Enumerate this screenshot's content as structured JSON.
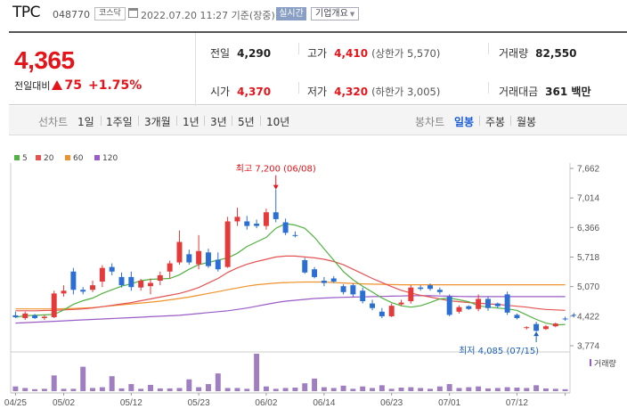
{
  "header": {
    "stock_name": "TPC",
    "stock_code": "048770",
    "market_badge": "코스닥",
    "timestamp": "2022.07.20 11:27 기준(장중)",
    "realtime_label": "실시간",
    "company_info_label": "기업개요",
    "company_info_caret": "▼"
  },
  "price": {
    "current": "4,365",
    "change_label": "전일대비",
    "change_value": "75",
    "change_pct": "+1.75%",
    "prev_close_label": "전일",
    "prev_close": "4,290",
    "high_label": "고가",
    "high": "4,410",
    "upper_limit": "(상한가 5,570)",
    "volume_label": "거래량",
    "volume": "82,550",
    "open_label": "시가",
    "open": "4,370",
    "low_label": "저가",
    "low": "4,320",
    "lower_limit": "(하한가 3,005)",
    "trade_value_label": "거래대금",
    "trade_value": "361 백만",
    "up_color": "#e4141a"
  },
  "period_bar": {
    "line_chart_label": "선차트",
    "line_periods": [
      "1일",
      "1주일",
      "3개월",
      "1년",
      "3년",
      "5년",
      "10년"
    ],
    "candle_chart_label": "봉차트",
    "candle_periods": [
      "일봉",
      "주봉",
      "월봉"
    ],
    "selected": "일봉",
    "selected_color": "#1a5dd8"
  },
  "chart": {
    "legend": [
      {
        "label": "5",
        "color": "#52b140"
      },
      {
        "label": "20",
        "color": "#e45353"
      },
      {
        "label": "60",
        "color": "#f0922b"
      },
      {
        "label": "120",
        "color": "#9a5cc7"
      }
    ],
    "volume_label": "거래량",
    "high_annotation": "최고 7,200 (06/08)",
    "low_annotation": "최저 4,085 (07/15)"
  },
  "chart_data": {
    "type": "candlestick",
    "y_ticks": [
      "7,662",
      "7,014",
      "6,366",
      "5,718",
      "5,070",
      "4,422",
      "3,774"
    ],
    "ylim": [
      3774,
      7662
    ],
    "x_ticks": [
      {
        "label": "04/25",
        "index": 0
      },
      {
        "label": "05/02",
        "index": 5
      },
      {
        "label": "05/12",
        "index": 12
      },
      {
        "label": "05/23",
        "index": 19
      },
      {
        "label": "06/02",
        "index": 26
      },
      {
        "label": "06/14",
        "index": 32
      },
      {
        "label": "06/23",
        "index": 39
      },
      {
        "label": "07/01",
        "index": 45
      },
      {
        "label": "07/12",
        "index": 52
      },
      {
        "label": "",
        "index": 57
      }
    ],
    "up_color": "#e43a3a",
    "down_color": "#2b6fd4",
    "candles": [
      {
        "o": 4440,
        "h": 4520,
        "l": 4380,
        "c": 4400
      },
      {
        "o": 4380,
        "h": 4520,
        "l": 4340,
        "c": 4480
      },
      {
        "o": 4440,
        "h": 4470,
        "l": 4360,
        "c": 4380
      },
      {
        "o": 4380,
        "h": 4450,
        "l": 4340,
        "c": 4410
      },
      {
        "o": 4400,
        "h": 4980,
        "l": 4380,
        "c": 4920
      },
      {
        "o": 4920,
        "h": 5100,
        "l": 4850,
        "c": 4980
      },
      {
        "o": 5400,
        "h": 5480,
        "l": 4900,
        "c": 5000
      },
      {
        "o": 5000,
        "h": 5060,
        "l": 4900,
        "c": 4960
      },
      {
        "o": 5000,
        "h": 5200,
        "l": 4950,
        "c": 5100
      },
      {
        "o": 5180,
        "h": 5540,
        "l": 5060,
        "c": 5480
      },
      {
        "o": 5500,
        "h": 5580,
        "l": 5320,
        "c": 5400
      },
      {
        "o": 5280,
        "h": 5380,
        "l": 5050,
        "c": 5100
      },
      {
        "o": 5280,
        "h": 5400,
        "l": 4980,
        "c": 5060
      },
      {
        "o": 5050,
        "h": 5240,
        "l": 4980,
        "c": 5200
      },
      {
        "o": 5080,
        "h": 5250,
        "l": 4900,
        "c": 5150
      },
      {
        "o": 5200,
        "h": 5400,
        "l": 5100,
        "c": 5320
      },
      {
        "o": 5400,
        "h": 5640,
        "l": 5250,
        "c": 5580
      },
      {
        "o": 5600,
        "h": 6300,
        "l": 5550,
        "c": 6050
      },
      {
        "o": 5780,
        "h": 5880,
        "l": 5550,
        "c": 5600
      },
      {
        "o": 5560,
        "h": 6200,
        "l": 5450,
        "c": 5850
      },
      {
        "o": 5820,
        "h": 5900,
        "l": 5480,
        "c": 5520
      },
      {
        "o": 5660,
        "h": 5820,
        "l": 5400,
        "c": 5450
      },
      {
        "o": 5500,
        "h": 6600,
        "l": 5480,
        "c": 6500
      },
      {
        "o": 6500,
        "h": 6800,
        "l": 6400,
        "c": 6600
      },
      {
        "o": 6500,
        "h": 6620,
        "l": 6320,
        "c": 6400
      },
      {
        "o": 6450,
        "h": 6540,
        "l": 6350,
        "c": 6400
      },
      {
        "o": 6400,
        "h": 6780,
        "l": 6320,
        "c": 6700
      },
      {
        "o": 6700,
        "h": 7200,
        "l": 6480,
        "c": 6550
      },
      {
        "o": 6480,
        "h": 6560,
        "l": 6200,
        "c": 6250
      },
      {
        "o": 6200,
        "h": 6280,
        "l": 6150,
        "c": 6180
      },
      {
        "o": 5650,
        "h": 5700,
        "l": 5350,
        "c": 5380
      },
      {
        "o": 5450,
        "h": 5500,
        "l": 5250,
        "c": 5280
      },
      {
        "o": 5200,
        "h": 5280,
        "l": 5080,
        "c": 5150
      },
      {
        "o": 5250,
        "h": 5300,
        "l": 5150,
        "c": 5180
      },
      {
        "o": 5080,
        "h": 5120,
        "l": 4900,
        "c": 4950
      },
      {
        "o": 5100,
        "h": 5140,
        "l": 4850,
        "c": 4900
      },
      {
        "o": 4980,
        "h": 5050,
        "l": 4700,
        "c": 4750
      },
      {
        "o": 4700,
        "h": 4780,
        "l": 4550,
        "c": 4600
      },
      {
        "o": 4520,
        "h": 4600,
        "l": 4380,
        "c": 4420
      },
      {
        "o": 4420,
        "h": 4700,
        "l": 4400,
        "c": 4650
      },
      {
        "o": 4680,
        "h": 4780,
        "l": 4650,
        "c": 4720
      },
      {
        "o": 4750,
        "h": 5100,
        "l": 4700,
        "c": 5050
      },
      {
        "o": 5050,
        "h": 5100,
        "l": 4980,
        "c": 5020
      },
      {
        "o": 5100,
        "h": 5140,
        "l": 4980,
        "c": 5020
      },
      {
        "o": 5000,
        "h": 5050,
        "l": 4900,
        "c": 4950
      },
      {
        "o": 4850,
        "h": 4900,
        "l": 4420,
        "c": 4450
      },
      {
        "o": 4520,
        "h": 4660,
        "l": 4480,
        "c": 4620
      },
      {
        "o": 4640,
        "h": 4660,
        "l": 4560,
        "c": 4580
      },
      {
        "o": 4580,
        "h": 4900,
        "l": 4530,
        "c": 4800
      },
      {
        "o": 4800,
        "h": 4850,
        "l": 4540,
        "c": 4600
      },
      {
        "o": 4700,
        "h": 4720,
        "l": 4600,
        "c": 4640
      },
      {
        "o": 4900,
        "h": 4960,
        "l": 4450,
        "c": 4500
      },
      {
        "o": 4450,
        "h": 4480,
        "l": 4350,
        "c": 4380
      },
      {
        "o": 4160,
        "h": 4200,
        "l": 4130,
        "c": 4180
      },
      {
        "o": 4250,
        "h": 4300,
        "l": 4085,
        "c": 4100
      },
      {
        "o": 4140,
        "h": 4230,
        "l": 4120,
        "c": 4200
      },
      {
        "o": 4200,
        "h": 4280,
        "l": 4180,
        "c": 4260
      },
      {
        "o": 4370,
        "h": 4410,
        "l": 4320,
        "c": 4365
      }
    ],
    "volumes": [
      12,
      8,
      5,
      6,
      40,
      6,
      6,
      62,
      8,
      10,
      38,
      7,
      18,
      6,
      16,
      7,
      7,
      8,
      30,
      10,
      18,
      45,
      8,
      8,
      6,
      95,
      12,
      6,
      8,
      9,
      20,
      32,
      10,
      8,
      14,
      6,
      12,
      8,
      15,
      6,
      9,
      10,
      8,
      6,
      12,
      18,
      8,
      10,
      12,
      7,
      8,
      10,
      9,
      8,
      15,
      7,
      6,
      5
    ],
    "ma5": [
      4400,
      4430,
      4440,
      4450,
      4460,
      4560,
      4680,
      4760,
      4820,
      4920,
      5000,
      5080,
      5130,
      5200,
      5230,
      5240,
      5250,
      5330,
      5450,
      5550,
      5600,
      5650,
      5700,
      5800,
      5950,
      6050,
      6150,
      6350,
      6450,
      6420,
      6350,
      6150,
      5900,
      5650,
      5400,
      5220,
      5080,
      4950,
      4820,
      4720,
      4650,
      4620,
      4650,
      4720,
      4800,
      4820,
      4780,
      4740,
      4650,
      4620,
      4600,
      4580,
      4550,
      4450,
      4350,
      4270,
      4230,
      4240
    ],
    "ma20": [
      4540,
      4540,
      4540,
      4545,
      4550,
      4560,
      4570,
      4580,
      4600,
      4630,
      4660,
      4690,
      4720,
      4760,
      4800,
      4840,
      4880,
      4920,
      4980,
      5050,
      5150,
      5250,
      5380,
      5480,
      5560,
      5620,
      5670,
      5720,
      5740,
      5740,
      5720,
      5700,
      5670,
      5620,
      5550,
      5450,
      5350,
      5250,
      5160,
      5070,
      4990,
      4930,
      4880,
      4840,
      4800,
      4760,
      4740,
      4720,
      4710,
      4690,
      4680,
      4660,
      4640,
      4620,
      4590,
      4570,
      4560,
      4550
    ],
    "ma60": [
      4580,
      4580,
      4580,
      4580,
      4580,
      4585,
      4590,
      4600,
      4610,
      4630,
      4650,
      4670,
      4690,
      4710,
      4730,
      4750,
      4780,
      4810,
      4840,
      4880,
      4920,
      4960,
      5000,
      5040,
      5080,
      5110,
      5130,
      5150,
      5160,
      5165,
      5170,
      5170,
      5170,
      5160,
      5150,
      5140,
      5130,
      5125,
      5120,
      5115,
      5110,
      5110,
      5110,
      5110,
      5110,
      5110,
      5110,
      5110,
      5110,
      5110,
      5110,
      5110,
      5110,
      5110,
      5110,
      5110,
      5110,
      5110
    ],
    "ma120": [
      4270,
      4280,
      4290,
      4300,
      4310,
      4320,
      4330,
      4340,
      4350,
      4360,
      4370,
      4380,
      4390,
      4400,
      4410,
      4420,
      4430,
      4440,
      4460,
      4480,
      4500,
      4520,
      4540,
      4570,
      4600,
      4640,
      4680,
      4720,
      4750,
      4770,
      4790,
      4810,
      4820,
      4830,
      4835,
      4840,
      4845,
      4850,
      4855,
      4860,
      4865,
      4870,
      4870,
      4870,
      4865,
      4860,
      4855,
      4850,
      4850,
      4850,
      4850,
      4850,
      4850,
      4850,
      4850,
      4850,
      4850,
      4850
    ]
  }
}
